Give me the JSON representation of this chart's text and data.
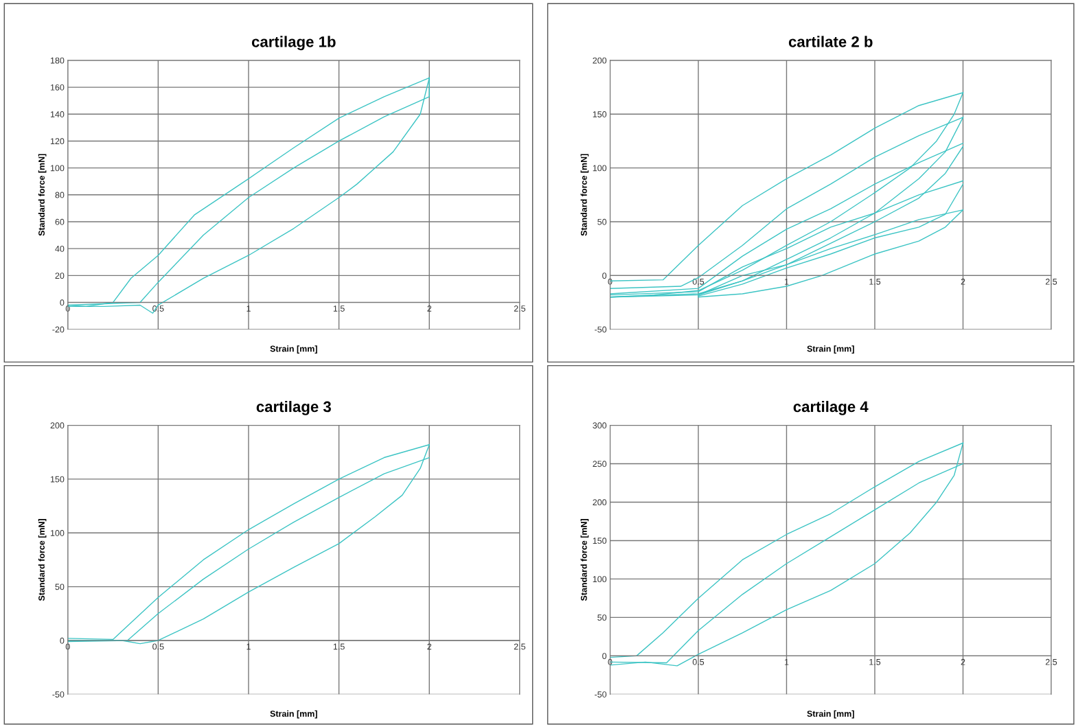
{
  "chart_data": [
    {
      "type": "line",
      "title": "cartilage 1b",
      "xlabel": "Strain [mm]",
      "ylabel": "Standard force [mN]",
      "xlim": [
        0,
        2.5
      ],
      "xticks": [
        0,
        0.5,
        1,
        1.5,
        2,
        2.5
      ],
      "ylim": [
        -20,
        180
      ],
      "yticks": [
        -20,
        0,
        20,
        40,
        60,
        80,
        100,
        120,
        140,
        160,
        180
      ],
      "grid": true,
      "marker": "none",
      "line_style": "solid",
      "series": [
        {
          "color": "#3cc4c4",
          "x": [
            0,
            0.1,
            0.25,
            0.35,
            0.5,
            0.7,
            1,
            1.25,
            1.5,
            1.75,
            2
          ],
          "values": [
            -2,
            -3,
            0,
            18,
            35,
            65,
            92,
            115,
            137,
            153,
            167
          ]
        },
        {
          "color": "#3cc4c4",
          "x": [
            2,
            1.95,
            1.8,
            1.6,
            1.5,
            1.25,
            1,
            0.75,
            0.5,
            0.47,
            0.4,
            0.2,
            0
          ],
          "values": [
            167,
            140,
            112,
            88,
            78,
            55,
            35,
            18,
            -2,
            -8,
            -2,
            -3,
            -3
          ]
        },
        {
          "color": "#3cc4c4",
          "x": [
            0,
            0.2,
            0.4,
            0.5,
            0.75,
            1,
            1.25,
            1.5,
            1.75,
            2,
            2
          ],
          "values": [
            -2,
            -1,
            0,
            15,
            50,
            78,
            100,
            120,
            138,
            153,
            167
          ]
        }
      ]
    },
    {
      "type": "line",
      "title": "cartilate 2 b",
      "xlabel": "Strain [mm]",
      "ylabel": "Standard force [mN]",
      "xlim": [
        0,
        2.5
      ],
      "xticks": [
        0,
        0.5,
        1,
        1.5,
        2,
        2.5
      ],
      "ylim": [
        -50,
        200
      ],
      "yticks": [
        -50,
        0,
        50,
        100,
        150,
        200
      ],
      "grid": true,
      "marker": "none",
      "line_style": "solid",
      "series": [
        {
          "color": "#3cc4c4",
          "x": [
            0,
            0.3,
            0.5,
            0.75,
            1,
            1.25,
            1.5,
            1.75,
            2
          ],
          "values": [
            -5,
            -4,
            28,
            65,
            90,
            112,
            137,
            158,
            170
          ]
        },
        {
          "color": "#3cc4c4",
          "x": [
            2,
            1.95,
            1.85,
            1.7,
            1.5,
            1.25,
            1,
            0.75,
            0.5,
            0.25,
            0
          ],
          "values": [
            170,
            150,
            125,
            100,
            77,
            50,
            28,
            5,
            -14,
            -18,
            -20
          ]
        },
        {
          "color": "#3cc4c4",
          "x": [
            0,
            0.4,
            0.5,
            0.75,
            1,
            1.25,
            1.5,
            1.75,
            2
          ],
          "values": [
            -12,
            -10,
            -2,
            28,
            62,
            85,
            110,
            130,
            147
          ]
        },
        {
          "color": "#3cc4c4",
          "x": [
            2,
            1.9,
            1.75,
            1.5,
            1.25,
            1,
            0.75,
            0.5,
            0
          ],
          "values": [
            147,
            115,
            90,
            58,
            35,
            15,
            -5,
            -17,
            -20
          ]
        },
        {
          "color": "#3cc4c4",
          "x": [
            0,
            0.5,
            0.75,
            1,
            1.25,
            1.5,
            1.75,
            2
          ],
          "values": [
            -17,
            -12,
            18,
            43,
            62,
            85,
            105,
            123
          ]
        },
        {
          "color": "#3cc4c4",
          "x": [
            2,
            1.9,
            1.75,
            1.5,
            1.25,
            1,
            0.75,
            0.5
          ],
          "values": [
            120,
            95,
            72,
            50,
            30,
            10,
            -5,
            -18
          ]
        },
        {
          "color": "#3cc4c4",
          "x": [
            0,
            0.5,
            0.75,
            1,
            1.25,
            1.5,
            1.75,
            2
          ],
          "values": [
            -18,
            -15,
            8,
            25,
            45,
            58,
            75,
            88
          ]
        },
        {
          "color": "#3cc4c4",
          "x": [
            2,
            1.9,
            1.75,
            1.5,
            1.25,
            1,
            0.75,
            0.5
          ],
          "values": [
            85,
            57,
            45,
            35,
            20,
            7,
            -8,
            -19
          ]
        },
        {
          "color": "#3cc4c4",
          "x": [
            0,
            0.5,
            0.75,
            1,
            1.25,
            1.5,
            1.75,
            2
          ],
          "values": [
            -20,
            -18,
            0,
            10,
            25,
            38,
            52,
            61
          ]
        },
        {
          "color": "#3cc4c4",
          "x": [
            2,
            1.9,
            1.75,
            1.5,
            1.2,
            1,
            0.75,
            0.5
          ],
          "values": [
            61,
            45,
            32,
            20,
            0,
            -10,
            -17,
            -20
          ]
        }
      ]
    },
    {
      "type": "line",
      "title": "cartilage 3",
      "xlabel": "Strain [mm]",
      "ylabel": "Standard force [mN]",
      "xlim": [
        0,
        2.5
      ],
      "xticks": [
        0,
        0.5,
        1,
        1.5,
        2,
        2.5
      ],
      "ylim": [
        -50,
        200
      ],
      "yticks": [
        -50,
        0,
        50,
        100,
        150,
        200
      ],
      "grid": true,
      "marker": "none",
      "line_style": "solid",
      "series": [
        {
          "color": "#3cc4c4",
          "x": [
            0,
            0.25,
            0.5,
            0.75,
            1,
            1.25,
            1.5,
            1.75,
            2
          ],
          "values": [
            2,
            1,
            40,
            75,
            103,
            127,
            150,
            170,
            182
          ]
        },
        {
          "color": "#3cc4c4",
          "x": [
            2,
            1.95,
            1.85,
            1.7,
            1.5,
            1.25,
            1,
            0.75,
            0.5,
            0.4,
            0.3,
            0
          ],
          "values": [
            182,
            160,
            135,
            115,
            90,
            68,
            45,
            20,
            0,
            -3,
            0,
            0
          ]
        },
        {
          "color": "#3cc4c4",
          "x": [
            0,
            0.33,
            0.5,
            0.75,
            1,
            1.25,
            1.5,
            1.75,
            2
          ],
          "values": [
            -1,
            0,
            25,
            57,
            85,
            110,
            133,
            155,
            170
          ]
        }
      ]
    },
    {
      "type": "line",
      "title": "cartilage 4",
      "xlabel": "Strain [mm]",
      "ylabel": "Standard force [mN]",
      "xlim": [
        0,
        2.5
      ],
      "xticks": [
        0,
        0.5,
        1,
        1.5,
        2,
        2.5
      ],
      "ylim": [
        -50,
        300
      ],
      "yticks": [
        -50,
        0,
        50,
        100,
        150,
        200,
        250,
        300
      ],
      "grid": true,
      "marker": "none",
      "line_style": "solid",
      "series": [
        {
          "color": "#3cc4c4",
          "x": [
            0,
            0.15,
            0.3,
            0.5,
            0.75,
            1,
            1.25,
            1.5,
            1.75,
            2
          ],
          "values": [
            -2,
            0,
            30,
            75,
            125,
            158,
            185,
            220,
            253,
            277
          ]
        },
        {
          "color": "#3cc4c4",
          "x": [
            2,
            1.95,
            1.85,
            1.7,
            1.5,
            1.25,
            1,
            0.75,
            0.5,
            0.38,
            0.2,
            0
          ],
          "values": [
            277,
            235,
            200,
            160,
            120,
            85,
            60,
            30,
            2,
            -13,
            -8,
            -12
          ]
        },
        {
          "color": "#3cc4c4",
          "x": [
            0,
            0.32,
            0.5,
            0.75,
            1,
            1.25,
            1.5,
            1.75,
            2
          ],
          "values": [
            -8,
            -9,
            33,
            80,
            120,
            155,
            190,
            225,
            250
          ]
        }
      ]
    }
  ]
}
